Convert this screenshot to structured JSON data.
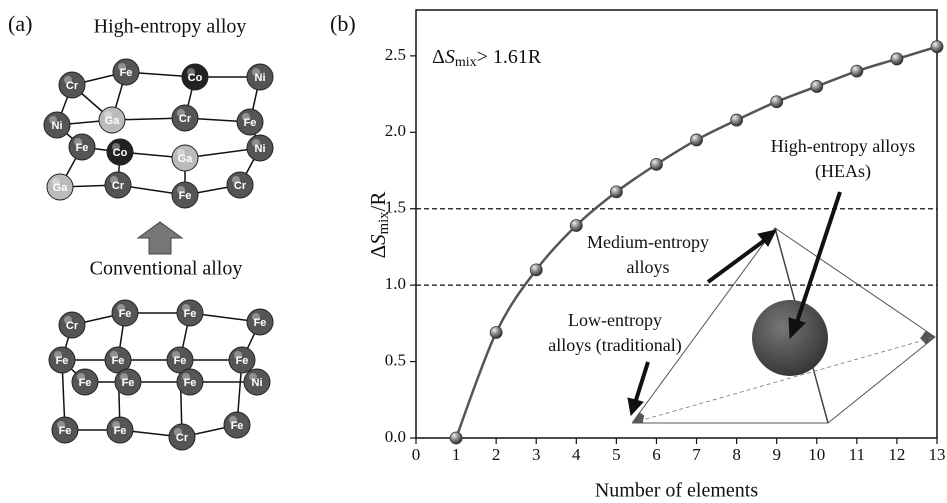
{
  "panel_a": {
    "label": "(a)",
    "hea_title": "High-entropy alloy",
    "conventional_title": "Conventional alloy",
    "hea_atoms": [
      {
        "label": "Cr",
        "color": "#555555"
      },
      {
        "label": "Fe",
        "color": "#555555"
      },
      {
        "label": "Co",
        "color": "#222222"
      },
      {
        "label": "Ni",
        "color": "#555555"
      },
      {
        "label": "Ni",
        "color": "#555555"
      },
      {
        "label": "Ga",
        "color": "#bbbbbb"
      },
      {
        "label": "Cr",
        "color": "#555555"
      },
      {
        "label": "Fe",
        "color": "#555555"
      },
      {
        "label": "Fe",
        "color": "#555555"
      },
      {
        "label": "Co",
        "color": "#222222"
      },
      {
        "label": "Ga",
        "color": "#bbbbbb"
      },
      {
        "label": "Ni",
        "color": "#555555"
      },
      {
        "label": "Ga",
        "color": "#bbbbbb"
      },
      {
        "label": "Cr",
        "color": "#555555"
      },
      {
        "label": "Fe",
        "color": "#555555"
      },
      {
        "label": "Cr",
        "color": "#555555"
      }
    ],
    "conventional_atoms": [
      {
        "label": "Cr",
        "color": "#555555"
      },
      {
        "label": "Fe",
        "color": "#555555"
      },
      {
        "label": "Fe",
        "color": "#555555"
      },
      {
        "label": "Fe",
        "color": "#555555"
      },
      {
        "label": "Fe",
        "color": "#555555"
      },
      {
        "label": "Fe",
        "color": "#555555"
      },
      {
        "label": "Fe",
        "color": "#555555"
      },
      {
        "label": "Fe",
        "color": "#555555"
      },
      {
        "label": "Fe",
        "color": "#555555"
      },
      {
        "label": "Fe",
        "color": "#555555"
      },
      {
        "label": "Fe",
        "color": "#555555"
      },
      {
        "label": "Ni",
        "color": "#555555"
      },
      {
        "label": "Fe",
        "color": "#555555"
      },
      {
        "label": "Fe",
        "color": "#555555"
      },
      {
        "label": "Cr",
        "color": "#555555"
      },
      {
        "label": "Fe",
        "color": "#555555"
      }
    ]
  },
  "chart_data": {
    "type": "line",
    "panel_label": "(b)",
    "x": [
      1,
      2,
      3,
      4,
      5,
      6,
      7,
      8,
      9,
      10,
      11,
      12,
      13
    ],
    "values": [
      0,
      0.69,
      1.1,
      1.39,
      1.61,
      1.79,
      1.95,
      2.08,
      2.2,
      2.3,
      2.4,
      2.48,
      2.56
    ],
    "color": "#555555",
    "xlim": [
      0,
      13
    ],
    "ylim": [
      0,
      2.8
    ],
    "xticks": [
      0,
      1,
      2,
      3,
      4,
      5,
      6,
      7,
      8,
      9,
      10,
      11,
      12,
      13
    ],
    "yticks": [
      {
        "value": 0,
        "label": "0.0"
      },
      0.5,
      {
        "value": 1,
        "label": "1.0"
      },
      1.5,
      {
        "value": 2,
        "label": "2.0"
      },
      2.5
    ],
    "hlines": [
      1,
      1.5
    ],
    "xlabel": "Number of elements",
    "ylabel": [
      "Δ",
      "S",
      "mix",
      "/R"
    ],
    "annotation": [
      "Δ",
      "S",
      "mix",
      "> 1.61R"
    ],
    "inset_labels": {
      "high": [
        "High-entropy alloys",
        "(HEAs)"
      ],
      "medium": [
        "Medium-entropy",
        "alloys"
      ],
      "low": [
        "Low-entropy",
        "alloys (traditional)"
      ]
    }
  }
}
